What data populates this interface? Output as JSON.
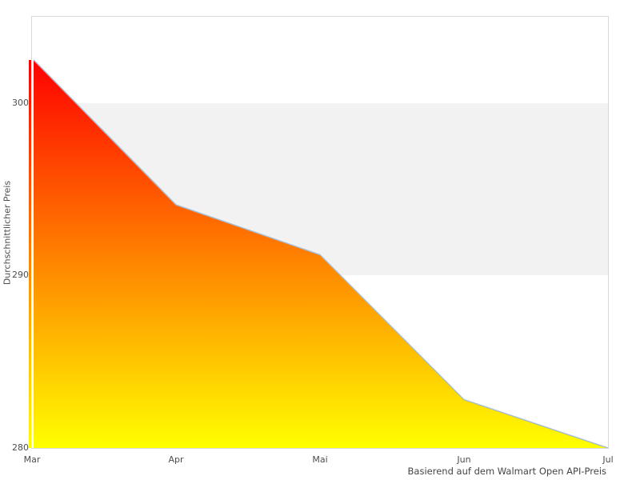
{
  "chart_data": {
    "type": "area",
    "title": "",
    "x_categories": [
      "Mar",
      "Apr",
      "Mai",
      "Jun",
      "Jul"
    ],
    "values": [
      302.5,
      294.1,
      291.2,
      282.8,
      280
    ],
    "ylabel": "Durchschnittlicher Preis",
    "xlabel": "",
    "caption": "Basierend auf dem Walmart Open API-Preis",
    "ylim": [
      280,
      305
    ],
    "yticks": [
      300,
      290,
      280
    ],
    "band_range": [
      290,
      300
    ],
    "legend": "none",
    "grid": "horizontal-band",
    "colors": {
      "area_gradient_top": "#ff0000",
      "area_gradient_bottom": "#ffff00",
      "line": "#a4bcd2",
      "band": "#f2f2f2",
      "plot_border": "#d9d9d9",
      "tick_text": "#4d4d4d",
      "background": "#ffffff"
    }
  }
}
